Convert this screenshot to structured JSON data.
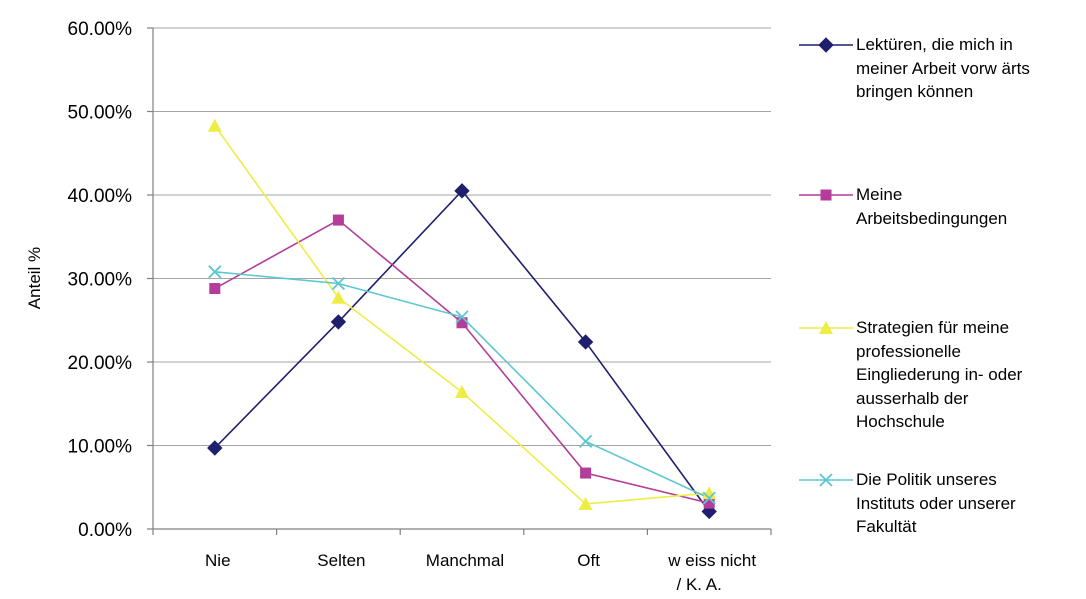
{
  "chart_data": {
    "type": "line",
    "title": "",
    "xlabel": "",
    "ylabel": "Anteil %",
    "categories": [
      "Nie",
      "Selten",
      "Manchmal",
      "Oft",
      "w eiss nicht\n/ K. A."
    ],
    "y_ticks": [
      "0.00%",
      "10.00%",
      "20.00%",
      "30.00%",
      "40.00%",
      "50.00%",
      "60.00%"
    ],
    "ylim": [
      0,
      0.6
    ],
    "grid": true,
    "legend_position": "right",
    "series": [
      {
        "name": "Lektüren, die mich in\nmeiner Arbeit vorw ärts\nbringen können",
        "color": "#1f1f6e",
        "marker": "diamond",
        "values": [
          0.097,
          0.248,
          0.405,
          0.224,
          0.021
        ]
      },
      {
        "name": "Meine\nArbeitsbedingungen",
        "color": "#b43c9a",
        "marker": "square",
        "values": [
          0.288,
          0.37,
          0.247,
          0.067,
          0.031
        ]
      },
      {
        "name": "Strategien für meine\nprofessionelle\nEingliederung in- oder\nausserhalb der\nHochschule",
        "color": "#eded45",
        "marker": "triangle",
        "values": [
          0.483,
          0.277,
          0.164,
          0.03,
          0.043
        ]
      },
      {
        "name": "Die Politik unseres\nInstituts oder unserer\nFakultät",
        "color": "#5cc7d1",
        "marker": "x",
        "values": [
          0.308,
          0.294,
          0.254,
          0.105,
          0.037
        ]
      }
    ]
  }
}
